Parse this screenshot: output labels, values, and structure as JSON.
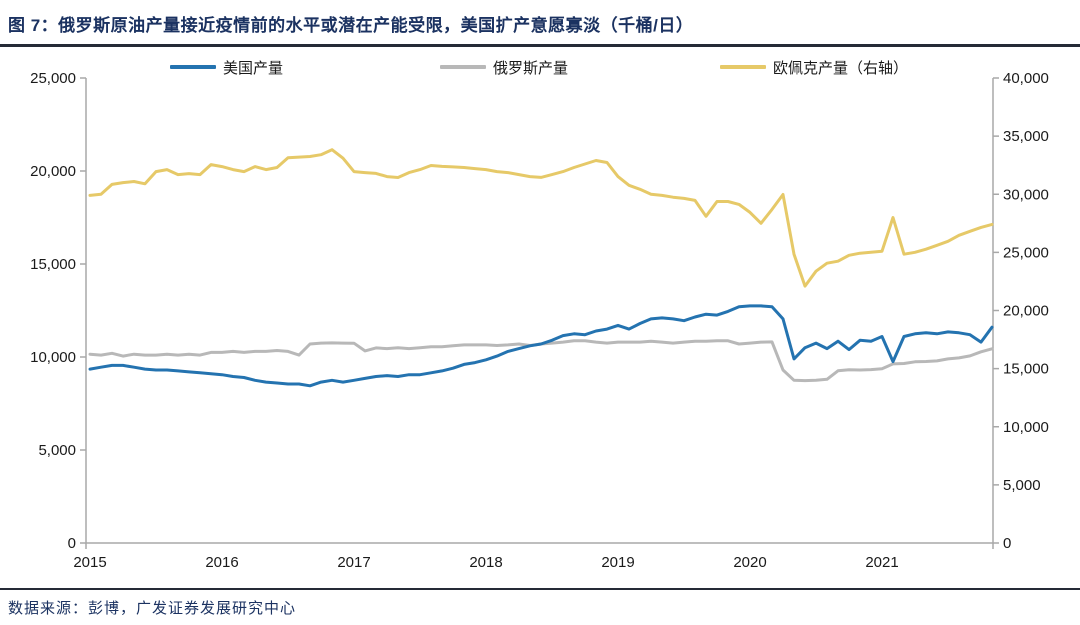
{
  "title": "图 7：俄罗斯原油产量接近疫情前的水平或潜在产能受限，美国扩产意愿寡淡（千桶/日）",
  "source": "数据来源：彭博，广发证券发展研究中心",
  "legend": [
    {
      "label": "美国产量"
    },
    {
      "label": "俄罗斯产量"
    },
    {
      "label": "欧佩克产量（右轴）"
    }
  ],
  "axes": {
    "left_ticks": [
      "0",
      "5,000",
      "10,000",
      "15,000",
      "20,000",
      "25,000"
    ],
    "right_ticks": [
      "0",
      "5,000",
      "10,000",
      "15,000",
      "20,000",
      "25,000",
      "30,000",
      "35,000",
      "40,000"
    ],
    "x_ticks": [
      "2015",
      "2016",
      "2017",
      "2018",
      "2019",
      "2020",
      "2021"
    ],
    "axis_color": "#a8a8a8"
  },
  "chart_data": {
    "type": "line",
    "x_start": "2015-01",
    "x_freq": "monthly",
    "x_year_labels": [
      "2015",
      "2016",
      "2017",
      "2018",
      "2019",
      "2020",
      "2021"
    ],
    "left_ylim": [
      0,
      25000
    ],
    "right_ylim": [
      0,
      40000
    ],
    "grid": false,
    "legend_position": "top",
    "series": [
      {
        "id": "russia-production",
        "name": "俄罗斯产量",
        "axis": "left",
        "color": "#b8b8b8",
        "values": [
          10150,
          10100,
          10200,
          10050,
          10150,
          10100,
          10100,
          10150,
          10100,
          10150,
          10100,
          10250,
          10250,
          10300,
          10250,
          10300,
          10300,
          10350,
          10300,
          10100,
          10700,
          10750,
          10760,
          10750,
          10740,
          10330,
          10490,
          10450,
          10500,
          10450,
          10500,
          10550,
          10550,
          10600,
          10650,
          10650,
          10650,
          10620,
          10650,
          10700,
          10620,
          10700,
          10750,
          10800,
          10870,
          10870,
          10800,
          10750,
          10800,
          10800,
          10800,
          10850,
          10800,
          10750,
          10800,
          10850,
          10850,
          10870,
          10870,
          10700,
          10750,
          10800,
          10810,
          9300,
          8750,
          8730,
          8750,
          8800,
          9260,
          9310,
          9300,
          9320,
          9370,
          9630,
          9650,
          9740,
          9760,
          9790,
          9900,
          9950,
          10060,
          10280,
          10440
        ]
      },
      {
        "id": "us-production",
        "name": "美国产量",
        "axis": "left",
        "color": "#2473b0",
        "values": [
          9350,
          9450,
          9550,
          9550,
          9450,
          9350,
          9300,
          9300,
          9250,
          9200,
          9150,
          9100,
          9050,
          8950,
          8900,
          8750,
          8650,
          8600,
          8550,
          8550,
          8450,
          8650,
          8750,
          8650,
          8750,
          8850,
          8950,
          9000,
          8950,
          9050,
          9050,
          9150,
          9250,
          9400,
          9600,
          9700,
          9850,
          10050,
          10300,
          10450,
          10600,
          10700,
          10900,
          11150,
          11250,
          11200,
          11400,
          11500,
          11700,
          11500,
          11800,
          12050,
          12100,
          12050,
          11950,
          12150,
          12300,
          12250,
          12450,
          12700,
          12750,
          12750,
          12700,
          12050,
          9900,
          10500,
          10750,
          10450,
          10850,
          10400,
          10900,
          10850,
          11100,
          9750,
          11100,
          11250,
          11300,
          11250,
          11350,
          11300,
          11200,
          10800,
          11600
        ]
      },
      {
        "id": "opec-production",
        "name": "欧佩克产量（右轴）",
        "axis": "right",
        "color": "#e6c968",
        "values": [
          29900,
          30000,
          30850,
          31000,
          31100,
          30900,
          31950,
          32120,
          31690,
          31780,
          31690,
          32550,
          32380,
          32120,
          31950,
          32380,
          32120,
          32300,
          33140,
          33200,
          33250,
          33400,
          33830,
          33100,
          31950,
          31860,
          31790,
          31520,
          31440,
          31860,
          32120,
          32470,
          32400,
          32350,
          32300,
          32210,
          32120,
          31950,
          31860,
          31690,
          31520,
          31450,
          31690,
          31950,
          32300,
          32600,
          32900,
          32730,
          31520,
          30770,
          30430,
          30000,
          29900,
          29750,
          29640,
          29470,
          28100,
          29380,
          29380,
          29130,
          28440,
          27500,
          28700,
          29980,
          24840,
          22100,
          23380,
          24070,
          24240,
          24750,
          24930,
          25010,
          25100,
          28000,
          24840,
          25010,
          25270,
          25610,
          25950,
          26470,
          26810,
          27150,
          27410
        ]
      }
    ]
  }
}
